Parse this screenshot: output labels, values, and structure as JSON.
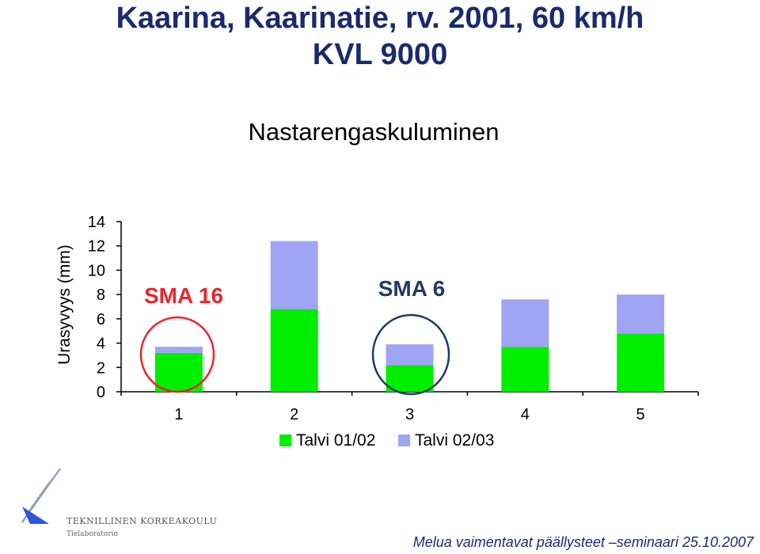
{
  "slide": {
    "title_line1": "Kaarina, Kaarinatie, rv. 2001, 60 km/h",
    "title_line2": "KVL 9000",
    "footer": "Melua vaimentavat päällysteet –seminaari 25.10.2007"
  },
  "logo": {
    "name": "TEKNILLINEN KORKEAKOULU",
    "unit": "Tielaboratorio"
  },
  "colors": {
    "title": "#1a2a6e",
    "series1": "#00ee00",
    "series2": "#a0a4f4",
    "annotation_red": "#e8262a",
    "annotation_navy": "#1f3a66"
  },
  "chart_data": {
    "type": "bar",
    "stacked": true,
    "title": "Nastarengaskuluminen",
    "xlabel": "",
    "ylabel": "Urasyvyys (mm)",
    "ylim": [
      0,
      14
    ],
    "yticks": [
      0,
      2,
      4,
      6,
      8,
      10,
      12,
      14
    ],
    "categories": [
      "1",
      "2",
      "3",
      "4",
      "5"
    ],
    "series": [
      {
        "name": "Talvi 01/02",
        "color": "#00ee00",
        "values": [
          3.2,
          6.8,
          2.2,
          3.7,
          4.8
        ]
      },
      {
        "name": "Talvi 02/03",
        "color": "#a0a4f4",
        "values": [
          0.5,
          5.6,
          1.7,
          3.9,
          3.2
        ]
      }
    ],
    "legend_position": "bottom",
    "grid": false,
    "annotations": [
      {
        "text": "SMA 16",
        "color": "#e8262a",
        "circled_category": "1"
      },
      {
        "text": "SMA 6",
        "color": "#1f3a66",
        "circled_category": "3"
      }
    ]
  }
}
